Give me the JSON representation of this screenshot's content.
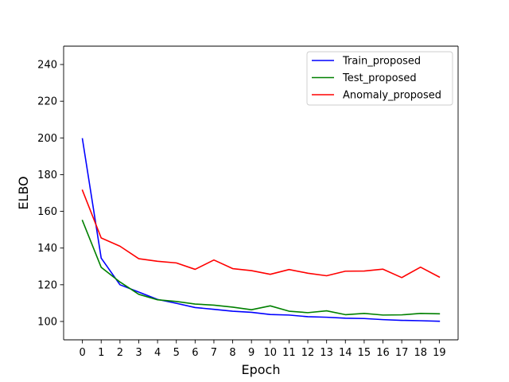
{
  "chart_data": {
    "type": "line",
    "title": "",
    "xlabel": "Epoch",
    "ylabel": "ELBO",
    "x": [
      0,
      1,
      2,
      3,
      4,
      5,
      6,
      7,
      8,
      9,
      10,
      11,
      12,
      13,
      14,
      15,
      16,
      17,
      18,
      19
    ],
    "xlim": [
      -1,
      20
    ],
    "ylim": [
      90,
      250
    ],
    "yticks": [
      100,
      120,
      140,
      160,
      180,
      200,
      220,
      240
    ],
    "grid": false,
    "legend_position": "top-right",
    "series": [
      {
        "name": "Train_proposed",
        "color": "#0000ff",
        "values": [
          199.5,
          134.5,
          120.0,
          116.0,
          112.0,
          109.9,
          107.6,
          106.6,
          105.6,
          105.0,
          103.8,
          103.5,
          102.6,
          102.3,
          101.8,
          101.6,
          101.0,
          100.6,
          100.4,
          100.1
        ]
      },
      {
        "name": "Test_proposed",
        "color": "#008000",
        "values": [
          155.0,
          129.5,
          121.5,
          114.8,
          111.8,
          110.9,
          109.5,
          108.9,
          107.8,
          106.4,
          108.5,
          105.6,
          104.8,
          105.8,
          103.7,
          104.4,
          103.5,
          103.6,
          104.4,
          104.2
        ]
      },
      {
        "name": "Anomaly_proposed",
        "color": "#ff0000",
        "values": [
          171.5,
          145.5,
          141.0,
          134.2,
          132.8,
          131.9,
          128.4,
          133.5,
          128.8,
          127.7,
          125.7,
          128.3,
          126.3,
          124.9,
          127.4,
          127.5,
          128.5,
          123.9,
          129.6,
          124.2
        ]
      }
    ]
  }
}
